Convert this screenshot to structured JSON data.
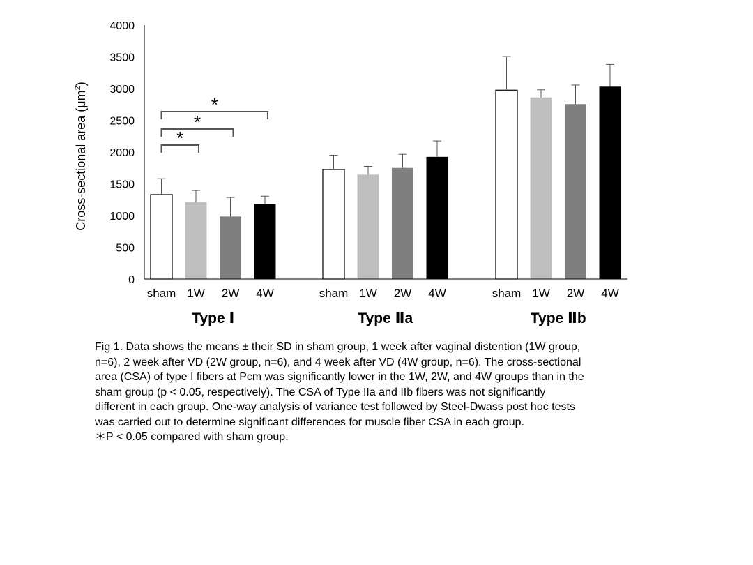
{
  "chart_data": {
    "type": "bar",
    "ylabel": "Cross-sectional area (μm²)",
    "ylabel_main": "Cross-sectional area (μm",
    "ylabel_sup": "2",
    "ylabel_close": ")",
    "ylim": [
      0,
      4000
    ],
    "yticks": [
      "0",
      "500",
      "1000",
      "1500",
      "2000",
      "2500",
      "3000",
      "3500",
      "4000"
    ],
    "ytick_values": [
      0,
      500,
      1000,
      1500,
      2000,
      2500,
      3000,
      3500,
      4000
    ],
    "grid": false,
    "categories": [
      "sham",
      "1W",
      "2W",
      "4W"
    ],
    "bar_colors": [
      "#ffffff",
      "#bfbfbf",
      "#7f7f7f",
      "#000000"
    ],
    "groups": [
      {
        "label": "Type Ⅰ",
        "values": [
          1330,
          1210,
          985,
          1185
        ],
        "sd": [
          250,
          185,
          300,
          120
        ]
      },
      {
        "label": "Type Ⅱa",
        "values": [
          1725,
          1645,
          1750,
          1925
        ],
        "sd": [
          225,
          130,
          215,
          250
        ]
      },
      {
        "label": "Type Ⅱb",
        "values": [
          2975,
          2860,
          2755,
          3030
        ],
        "sd": [
          530,
          120,
          300,
          350
        ]
      }
    ],
    "significance": [
      {
        "group": 0,
        "from": "sham",
        "to": "1W",
        "marker": "*"
      },
      {
        "group": 0,
        "from": "sham",
        "to": "2W",
        "marker": "*"
      },
      {
        "group": 0,
        "from": "sham",
        "to": "4W",
        "marker": "*"
      }
    ]
  },
  "caption": {
    "line1": "Fig 1. Data shows the means ± their SD in sham group, 1 week after vaginal distention (1W group,",
    "line2": "n=6), 2 week after VD (2W group, n=6), and 4 week after VD (4W group, n=6). The cross-sectional",
    "line3": "area (CSA) of type I fibers at Pcm was significantly lower in the 1W, 2W, and 4W groups than in the",
    "line4": "sham group (p < 0.05, respectively). The CSA of Type IIa and IIb fibers was not significantly",
    "line5": "different in each group. One-way analysis of variance test followed by Steel-Dwass post hoc tests",
    "line6": "was carried out to determine significant differences for muscle fiber CSA in each group.",
    "line7": "＊P < 0.05 compared with sham group."
  }
}
